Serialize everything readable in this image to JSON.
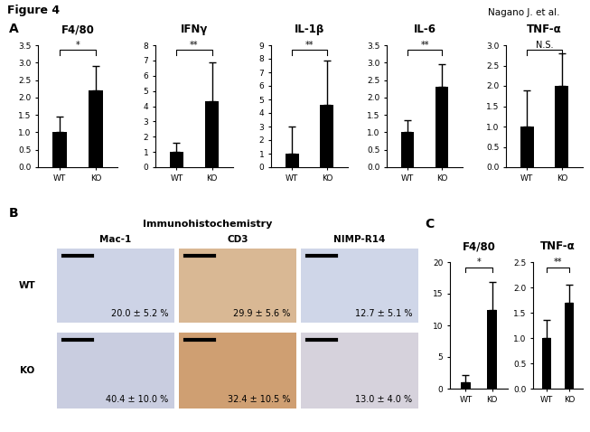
{
  "figure": {
    "title": "Figure 4",
    "credit": "Nagano J. et al.",
    "panel_labels": [
      "A",
      "B",
      "C"
    ]
  },
  "chart_data": [
    {
      "type": "bar",
      "title": "F4/80",
      "categories": [
        "WT",
        "KO"
      ],
      "values": [
        1.0,
        2.2
      ],
      "errors": [
        0.45,
        0.7
      ],
      "annotation": "*",
      "color": "#000000",
      "ylim": [
        0,
        3.5
      ],
      "yticks": [
        {
          "value": 0,
          "label": "0.0"
        },
        0.5,
        {
          "value": 1,
          "label": "1.0"
        },
        1.5,
        {
          "value": 2,
          "label": "2.0"
        },
        2.5,
        {
          "value": 3,
          "label": "3.0"
        },
        3.5
      ]
    },
    {
      "type": "bar",
      "title": "IFNγ",
      "categories": [
        "WT",
        "KO"
      ],
      "values": [
        1.0,
        4.3
      ],
      "errors": [
        0.6,
        2.6
      ],
      "annotation": "**",
      "color": "#000000",
      "ylim": [
        0,
        8
      ],
      "yticks": [
        0,
        1,
        2,
        3,
        4,
        5,
        6,
        7,
        8
      ]
    },
    {
      "type": "bar",
      "title": "IL-1β",
      "categories": [
        "WT",
        "KO"
      ],
      "values": [
        1.0,
        4.6
      ],
      "errors": [
        2.0,
        3.3
      ],
      "annotation": "**",
      "color": "#000000",
      "ylim": [
        0,
        9
      ],
      "yticks": [
        0,
        1,
        2,
        3,
        4,
        5,
        6,
        7,
        8,
        9
      ]
    },
    {
      "type": "bar",
      "title": "IL-6",
      "categories": [
        "WT",
        "KO"
      ],
      "values": [
        1.0,
        2.3
      ],
      "errors": [
        0.35,
        0.65
      ],
      "annotation": "**",
      "color": "#000000",
      "ylim": [
        0,
        3.5
      ],
      "yticks": [
        {
          "value": 0,
          "label": "0.0"
        },
        0.5,
        {
          "value": 1,
          "label": "1.0"
        },
        1.5,
        {
          "value": 2,
          "label": "2.0"
        },
        2.5,
        {
          "value": 3,
          "label": "3.0"
        },
        3.5
      ]
    },
    {
      "type": "bar",
      "title": "TNF-α",
      "categories": [
        "WT",
        "KO"
      ],
      "values": [
        1.0,
        2.0
      ],
      "errors": [
        0.9,
        0.8
      ],
      "annotation": "N.S.",
      "color": "#000000",
      "ylim": [
        0,
        3.0
      ],
      "yticks": [
        {
          "value": 0,
          "label": "0.0"
        },
        0.5,
        {
          "value": 1,
          "label": "1.0"
        },
        1.5,
        {
          "value": 2,
          "label": "2.0"
        },
        2.5,
        {
          "value": 3,
          "label": "3.0"
        }
      ]
    },
    {
      "type": "bar",
      "title": "F4/80",
      "categories": [
        "WT",
        "KO"
      ],
      "values": [
        1.0,
        12.4
      ],
      "errors": [
        1.2,
        4.5
      ],
      "annotation": "*",
      "color": "#000000",
      "ylim": [
        0,
        20
      ],
      "yticks": [
        0,
        5,
        10,
        15,
        20
      ]
    },
    {
      "type": "bar",
      "title": "TNF-α",
      "categories": [
        "WT",
        "KO"
      ],
      "values": [
        1.0,
        1.7
      ],
      "errors": [
        0.35,
        0.35
      ],
      "annotation": "**",
      "color": "#000000",
      "ylim": [
        0,
        2.5
      ],
      "yticks": [
        {
          "value": 0,
          "label": "0.0"
        },
        0.5,
        {
          "value": 1,
          "label": "1.0"
        },
        1.5,
        {
          "value": 2,
          "label": "2.0"
        },
        2.5
      ]
    }
  ],
  "immunohistochemistry": {
    "title": "Immunohistochemistry",
    "columns": [
      "Mac-1",
      "CD3",
      "NIMP-R14"
    ],
    "rows": [
      {
        "label": "WT",
        "values": [
          "20.0 ± 5.2 %",
          "29.9 ± 5.6 %",
          "12.7 ± 5.1 %"
        ]
      },
      {
        "label": "KO",
        "values": [
          "40.4 ± 10.0 %",
          "32.4 ± 10.5 %",
          "13.0 ± 4.0 %"
        ]
      }
    ]
  }
}
